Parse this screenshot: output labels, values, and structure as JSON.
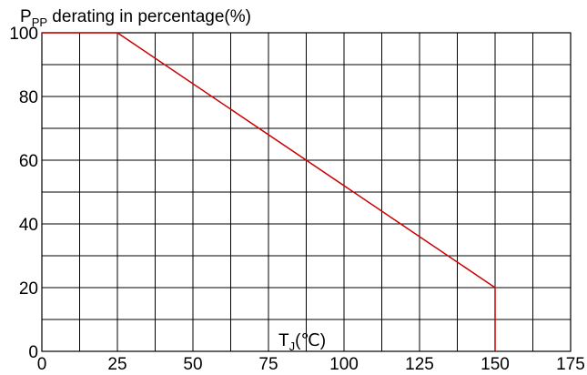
{
  "chart_data": {
    "type": "line",
    "title": "",
    "ylabel_main": "P",
    "ylabel_sub": "PP",
    "ylabel_rest": " derating in percentage(%)",
    "xlabel_main": "T",
    "xlabel_sub": "J",
    "xlabel_rest": "(℃)",
    "xlim": [
      0,
      175
    ],
    "ylim": [
      0,
      100
    ],
    "x_ticks": [
      0,
      25,
      50,
      75,
      100,
      125,
      150,
      175
    ],
    "y_ticks": [
      0,
      20,
      40,
      60,
      80,
      100
    ],
    "x_minor_step": 12.5,
    "y_minor_step": 10,
    "grid": true,
    "legend": "none",
    "series": [
      {
        "color": "#cc0000",
        "x": [
          0,
          25,
          150,
          150
        ],
        "y": [
          100,
          100,
          20,
          0
        ]
      }
    ]
  }
}
